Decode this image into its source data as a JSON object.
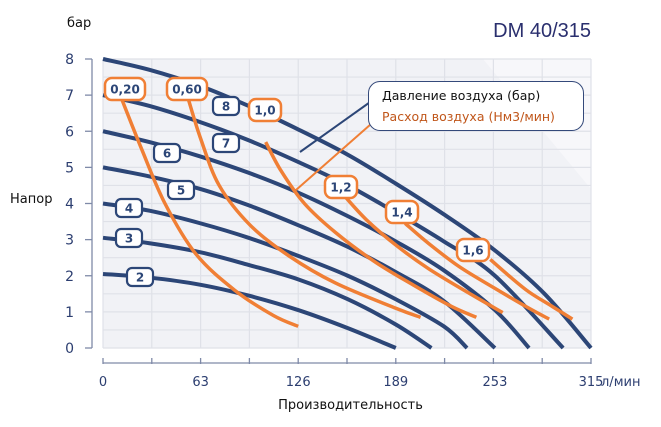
{
  "chart_data": {
    "type": "line",
    "title": "DM 40/315",
    "xlabel": "Производительность",
    "xunit": "л/мин",
    "ylabel": "Напор",
    "yunit": "бар",
    "xlim": [
      0,
      315
    ],
    "ylim": [
      0,
      8
    ],
    "x_ticks": [
      0,
      63,
      126,
      189,
      253,
      315
    ],
    "y_ticks": [
      0,
      1,
      2,
      3,
      4,
      5,
      6,
      7,
      8
    ],
    "grid": true,
    "legend": {
      "position": "upper right",
      "entries": [
        {
          "label": "Давление воздуха (бар)",
          "color": "#2c4677"
        },
        {
          "label": "Расход воздуха (Нм3/мин)",
          "color": "#f07f35"
        }
      ]
    },
    "series_pressure": [
      {
        "name": "2",
        "x": [
          0,
          30,
          63,
          94,
          126,
          158,
          189
        ],
        "y": [
          2.05,
          1.95,
          1.75,
          1.45,
          1.05,
          0.55,
          0
        ]
      },
      {
        "name": "3",
        "x": [
          0,
          30,
          63,
          94,
          126,
          158,
          189,
          212
        ],
        "y": [
          3.05,
          2.9,
          2.65,
          2.3,
          1.9,
          1.35,
          0.65,
          0
        ]
      },
      {
        "name": "4",
        "x": [
          0,
          30,
          63,
          94,
          126,
          158,
          189,
          220,
          235
        ],
        "y": [
          4.0,
          3.8,
          3.45,
          3.05,
          2.55,
          2.0,
          1.35,
          0.6,
          0
        ]
      },
      {
        "name": "5",
        "x": [
          0,
          30,
          63,
          94,
          126,
          158,
          189,
          220,
          253
        ],
        "y": [
          5.0,
          4.75,
          4.4,
          3.95,
          3.4,
          2.8,
          2.1,
          1.3,
          0
        ]
      },
      {
        "name": "6",
        "x": [
          0,
          30,
          63,
          94,
          126,
          158,
          189,
          220,
          253,
          275
        ],
        "y": [
          6.0,
          5.7,
          5.3,
          4.85,
          4.3,
          3.65,
          2.95,
          2.15,
          1.05,
          0
        ]
      },
      {
        "name": "7",
        "x": [
          0,
          30,
          63,
          94,
          126,
          158,
          189,
          220,
          253,
          297
        ],
        "y": [
          7.0,
          6.7,
          6.25,
          5.75,
          5.15,
          4.5,
          3.75,
          2.95,
          2.0,
          0
        ]
      },
      {
        "name": "8",
        "x": [
          0,
          30,
          63,
          94,
          126,
          158,
          189,
          220,
          253,
          285,
          315
        ],
        "y": [
          8.0,
          7.7,
          7.25,
          6.7,
          6.05,
          5.35,
          4.55,
          3.7,
          2.7,
          1.5,
          0
        ]
      }
    ],
    "series_air_flow": [
      {
        "name": "0,20",
        "x": [
          12,
          25,
          40,
          60,
          85,
          110,
          126
        ],
        "y": [
          6.9,
          5.5,
          4.0,
          2.6,
          1.6,
          0.9,
          0.6
        ]
      },
      {
        "name": "0,60",
        "x": [
          55,
          63,
          75,
          95,
          120,
          150,
          189,
          205
        ],
        "y": [
          6.9,
          5.8,
          4.5,
          3.4,
          2.55,
          1.8,
          1.1,
          0.85
        ]
      },
      {
        "name": "1,0",
        "x": [
          105,
          115,
          130,
          150,
          175,
          200,
          225,
          241
        ],
        "y": [
          5.7,
          4.9,
          4.0,
          3.2,
          2.4,
          1.75,
          1.15,
          0.85
        ]
      },
      {
        "name": "1,2",
        "x": [
          155,
          170,
          189,
          210,
          235,
          258
        ],
        "y": [
          4.25,
          3.55,
          2.85,
          2.2,
          1.55,
          0.98
        ]
      },
      {
        "name": "1,4",
        "x": [
          195,
          210,
          230,
          253,
          275,
          288
        ],
        "y": [
          3.45,
          2.9,
          2.25,
          1.65,
          1.1,
          0.8
        ]
      },
      {
        "name": "1,6",
        "x": [
          250,
          262,
          275,
          290,
          303
        ],
        "y": [
          2.45,
          2.0,
          1.55,
          1.15,
          0.8
        ]
      }
    ]
  },
  "header": {
    "title": "DM 40/315"
  },
  "axes": {
    "y_unit": "бар",
    "y_title": "Напор",
    "x_title": "Производительность",
    "x_unit": "л/мин",
    "y_tick_labels": [
      "0",
      "1",
      "2",
      "3",
      "4",
      "5",
      "6",
      "7",
      "8"
    ],
    "x_tick_labels": [
      "0",
      "63",
      "126",
      "189",
      "253",
      "315"
    ]
  },
  "legend": {
    "pressure_label": "Давление воздуха (бар)",
    "airflow_label": "Расход воздуха (Нм3/мин)"
  },
  "colors": {
    "pressure": "#2c4677",
    "airflow": "#f07f35",
    "grid": "#dfe1e8",
    "plot_bg": "#f1f2f6",
    "title": "#2a2f6e",
    "tick": "#2c3e70"
  }
}
